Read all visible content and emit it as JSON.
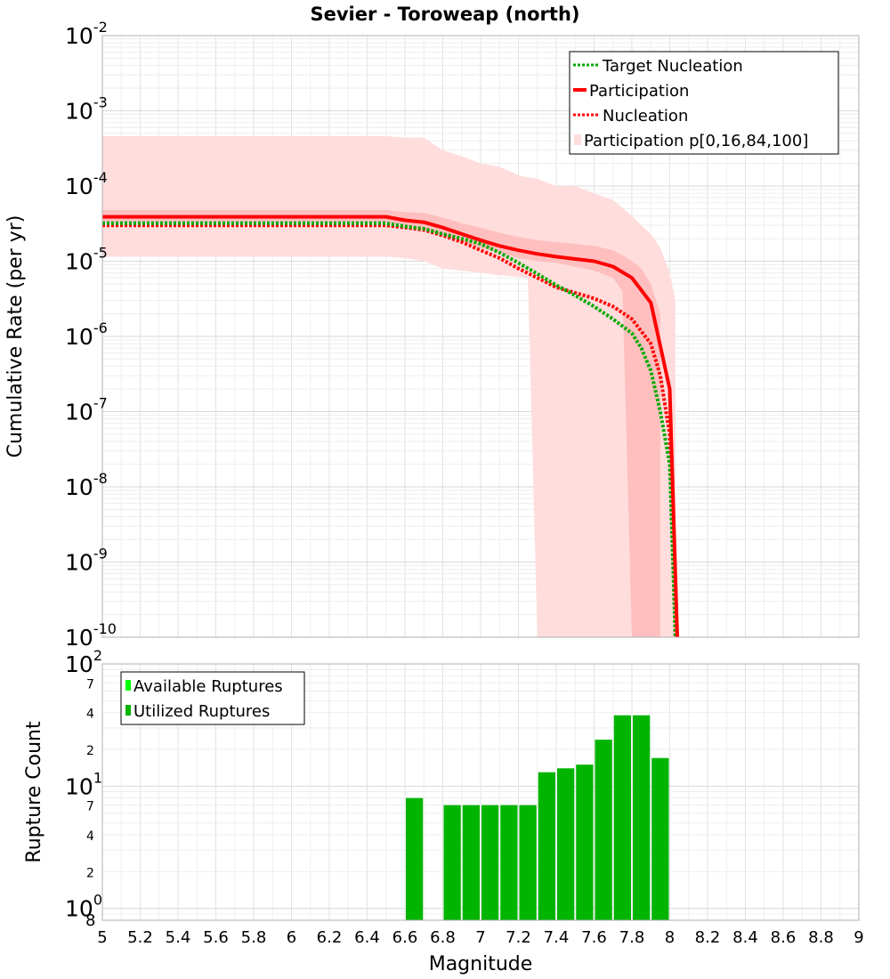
{
  "title": "Sevier - Toroweap (north)",
  "chart_data": [
    {
      "type": "line",
      "title": "Sevier - Toroweap (north)",
      "xlabel": "Magnitude",
      "ylabel": "Cumulative Rate (per yr)",
      "yscale": "log",
      "xlim": [
        5,
        9
      ],
      "ylim": [
        1e-10,
        0.01
      ],
      "grid": true,
      "legend_position": "top-right",
      "x_ticks": [
        "5",
        "5.2",
        "5.4",
        "5.6",
        "5.8",
        "6",
        "6.2",
        "6.4",
        "6.6",
        "6.8",
        "7",
        "7.2",
        "7.4",
        "7.6",
        "7.8",
        "8",
        "8.2",
        "8.4",
        "8.6",
        "8.8",
        "9"
      ],
      "y_ticks": [
        {
          "base": "10",
          "exp": "-10"
        },
        {
          "base": "10",
          "exp": "-9"
        },
        {
          "base": "10",
          "exp": "-8"
        },
        {
          "base": "10",
          "exp": "-7"
        },
        {
          "base": "10",
          "exp": "-6"
        },
        {
          "base": "10",
          "exp": "-5"
        },
        {
          "base": "10",
          "exp": "-4"
        },
        {
          "base": "10",
          "exp": "-3"
        },
        {
          "base": "10",
          "exp": "-2"
        }
      ],
      "series": [
        {
          "name": "Target Nucleation",
          "style": "dotted",
          "color": "#00aa00",
          "x": [
            5.0,
            6.5,
            6.6,
            6.7,
            6.8,
            6.9,
            7.0,
            7.1,
            7.2,
            7.3,
            7.4,
            7.5,
            7.6,
            7.7,
            7.8,
            7.85,
            7.9,
            7.95,
            8.0,
            8.03
          ],
          "y": [
            3.2e-05,
            3.2e-05,
            2.9e-05,
            2.7e-05,
            2.3e-05,
            2e-05,
            1.7e-05,
            1.3e-05,
            9.5e-06,
            6.8e-06,
            4.8e-06,
            3.5e-06,
            2.5e-06,
            1.7e-06,
            1.1e-06,
            7e-07,
            3.5e-07,
            1e-07,
            2e-08,
            1e-10
          ]
        },
        {
          "name": "Participation",
          "style": "solid",
          "color": "#ff0000",
          "x": [
            5.0,
            6.5,
            6.6,
            6.7,
            6.8,
            6.9,
            7.0,
            7.1,
            7.2,
            7.3,
            7.4,
            7.5,
            7.6,
            7.7,
            7.8,
            7.9,
            8.0,
            8.04
          ],
          "y": [
            3.9e-05,
            3.9e-05,
            3.5e-05,
            3.3e-05,
            2.8e-05,
            2.3e-05,
            1.9e-05,
            1.6e-05,
            1.4e-05,
            1.25e-05,
            1.15e-05,
            1.07e-05,
            1e-05,
            8.5e-06,
            6e-06,
            2.8e-06,
            2e-07,
            1e-10
          ]
        },
        {
          "name": "Nucleation",
          "style": "dotted",
          "color": "#ff0000",
          "x": [
            5.0,
            6.5,
            6.6,
            6.7,
            6.8,
            6.9,
            7.0,
            7.1,
            7.2,
            7.3,
            7.4,
            7.5,
            7.6,
            7.7,
            7.8,
            7.9,
            7.95,
            8.0,
            8.03
          ],
          "y": [
            3e-05,
            3e-05,
            2.8e-05,
            2.6e-05,
            2.2e-05,
            1.8e-05,
            1.4e-05,
            1.1e-05,
            8e-06,
            6e-06,
            4.5e-06,
            3.8e-06,
            3.2e-06,
            2.5e-06,
            1.7e-06,
            8e-07,
            3e-07,
            5e-08,
            1e-10
          ]
        }
      ],
      "bands": [
        {
          "name": "Participation p[0,16,84,100]",
          "role": "outer (p0-p100)",
          "color": "#ffdddd",
          "x": [
            5.0,
            6.5,
            6.6,
            6.7,
            6.8,
            6.9,
            7.0,
            7.1,
            7.2,
            7.25,
            7.3,
            7.4,
            7.5,
            7.6,
            7.7,
            7.8,
            7.85,
            7.9,
            7.95,
            8.0,
            8.03
          ],
          "upper": [
            0.00046,
            0.00046,
            0.00044,
            0.00044,
            0.0003,
            0.00025,
            0.0002,
            0.00018,
            0.00014,
            0.00013,
            0.000125,
            0.0001,
            0.0001,
            8e-05,
            6.5e-05,
            4e-05,
            3e-05,
            2.3e-05,
            1.5e-05,
            7e-06,
            3e-06
          ],
          "lower": [
            1.15e-05,
            1.15e-05,
            1.1e-05,
            1e-05,
            8e-06,
            7.5e-06,
            7e-06,
            6.5e-06,
            6.2e-06,
            6e-06,
            1e-10,
            1e-10,
            1e-10,
            1e-10,
            1e-10,
            1e-10,
            1e-10,
            1e-10,
            1e-10,
            1e-10,
            1e-10
          ]
        },
        {
          "name": "Participation p[0,16,84,100]",
          "role": "inner (p16-p84)",
          "color": "#ffbfbf",
          "x": [
            5.0,
            6.5,
            6.6,
            6.7,
            6.8,
            6.9,
            7.0,
            7.1,
            7.2,
            7.3,
            7.4,
            7.5,
            7.6,
            7.7,
            7.75,
            7.8,
            7.85,
            7.9,
            7.95
          ],
          "upper": [
            4.8e-05,
            4.8e-05,
            4.5e-05,
            4.4e-05,
            3.8e-05,
            3.2e-05,
            2.8e-05,
            2.4e-05,
            2.1e-05,
            1.9e-05,
            1.8e-05,
            1.7e-05,
            1.6e-05,
            1.4e-05,
            1.2e-05,
            1e-05,
            8e-06,
            5e-06,
            2e-06
          ],
          "lower": [
            3.3e-05,
            3.3e-05,
            3e-05,
            2.7e-05,
            2.2e-05,
            1.8e-05,
            1.5e-05,
            1.3e-05,
            1.1e-05,
            1e-05,
            9.5e-06,
            8.5e-06,
            7.5e-06,
            6e-06,
            4e-06,
            1e-10,
            1e-10,
            1e-10,
            1e-10
          ]
        }
      ]
    },
    {
      "type": "bar",
      "xlabel": "Magnitude",
      "ylabel": "Rupture Count",
      "yscale": "log",
      "xlim": [
        5,
        9
      ],
      "ylim": [
        0.8,
        100
      ],
      "grid": true,
      "legend_position": "top-left",
      "legend": [
        {
          "name": "Available Ruptures",
          "color": "#00ff00"
        },
        {
          "name": "Utilized Ruptures",
          "color": "#00b400"
        }
      ],
      "bar_width": 0.1,
      "x_ticks": [
        "5",
        "5.2",
        "5.4",
        "5.6",
        "5.8",
        "6",
        "6.2",
        "6.4",
        "6.6",
        "6.8",
        "7",
        "7.2",
        "7.4",
        "7.6",
        "7.8",
        "8",
        "8.2",
        "8.4",
        "8.6",
        "8.8",
        "9"
      ],
      "y_major_ticks": [
        {
          "value": 1,
          "base": "10",
          "exp": "0"
        },
        {
          "value": 10,
          "base": "10",
          "exp": "1"
        },
        {
          "value": 100,
          "base": "10",
          "exp": "2"
        }
      ],
      "y_minor_ticks": [
        {
          "value": 0.8,
          "label": "8"
        },
        {
          "value": 2,
          "label": "2"
        },
        {
          "value": 4,
          "label": "4"
        },
        {
          "value": 7,
          "label": "7"
        },
        {
          "value": 20,
          "label": "2"
        },
        {
          "value": 40,
          "label": "4"
        },
        {
          "value": 70,
          "label": "7"
        }
      ],
      "series": [
        {
          "name": "Utilized Ruptures",
          "color": "#00b400",
          "x": [
            6.65,
            6.85,
            6.95,
            7.05,
            7.15,
            7.25,
            7.35,
            7.45,
            7.55,
            7.65,
            7.75,
            7.85,
            7.95
          ],
          "values": [
            8,
            7,
            7,
            7,
            7,
            7,
            13,
            14,
            15,
            24,
            38,
            38,
            17
          ]
        }
      ]
    }
  ]
}
